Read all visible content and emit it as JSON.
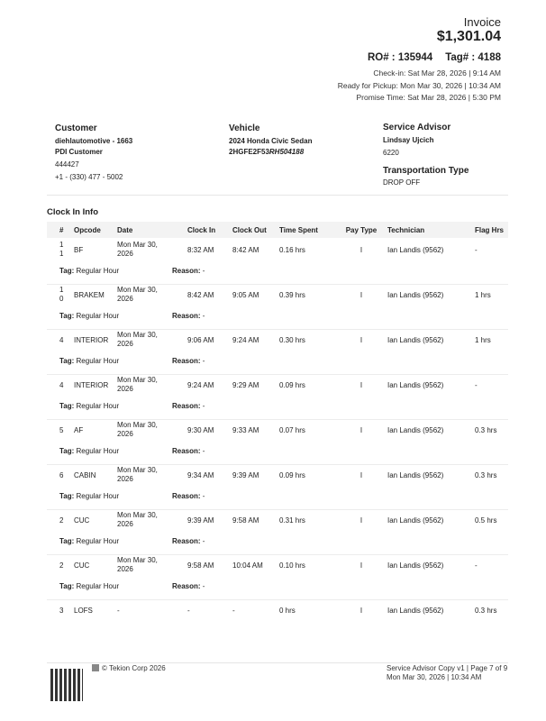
{
  "header": {
    "title": "Invoice",
    "amount": "$1,301.04",
    "ro": "RO# : 135944",
    "tag": "Tag# : 4188",
    "checkin": "Check-in: Sat Mar 28, 2026 | 9:14 AM",
    "ready": "Ready for Pickup: Mon Mar 30, 2026 | 10:34 AM",
    "promise": "Promise Time: Sat Mar 28, 2026 | 5:30 PM"
  },
  "customer": {
    "label": "Customer",
    "name": "diehlautomotive - 1663",
    "type": "PDI Customer",
    "id": "444427",
    "phone": "+1 - (330) 477 - 5002"
  },
  "vehicle": {
    "label": "Vehicle",
    "model": "2024 Honda Civic Sedan",
    "vin_a": "2HGFE2F53",
    "vin_b": "RH504188"
  },
  "advisor": {
    "label": "Service Advisor",
    "name": "Lindsay Ujcich",
    "id": "6220",
    "transport_label": "Transportation Type",
    "transport": "DROP OFF"
  },
  "clock": {
    "title": "Clock In Info",
    "columns": [
      "#",
      "Opcode",
      "Date",
      "Clock In",
      "Clock Out",
      "Time Spent",
      "Pay Type",
      "Technician",
      "Flag Hrs"
    ],
    "tag_label": "Tag:",
    "reason_label": "Reason:",
    "rows": [
      {
        "num": "11",
        "op": "BF",
        "date": "Mon Mar 30, 2026",
        "in": "8:32 AM",
        "out": "8:42 AM",
        "ts": "0.16 hrs",
        "pay": "I",
        "tech": "Ian Landis (9562)",
        "flag": "-",
        "tag": "Regular Hour",
        "reason": "-"
      },
      {
        "num": "10",
        "op": "BRAKEM",
        "date": "Mon Mar 30, 2026",
        "in": "8:42 AM",
        "out": "9:05 AM",
        "ts": "0.39 hrs",
        "pay": "I",
        "tech": "Ian Landis (9562)",
        "flag": "1 hrs",
        "tag": "Regular Hour",
        "reason": "-"
      },
      {
        "num": "4",
        "op": "INTERIOR",
        "date": "Mon Mar 30, 2026",
        "in": "9:06 AM",
        "out": "9:24 AM",
        "ts": "0.30 hrs",
        "pay": "I",
        "tech": "Ian Landis (9562)",
        "flag": "1 hrs",
        "tag": "Regular Hour",
        "reason": "-"
      },
      {
        "num": "4",
        "op": "INTERIOR",
        "date": "Mon Mar 30, 2026",
        "in": "9:24 AM",
        "out": "9:29 AM",
        "ts": "0.09 hrs",
        "pay": "I",
        "tech": "Ian Landis (9562)",
        "flag": "-",
        "tag": "Regular Hour",
        "reason": "-"
      },
      {
        "num": "5",
        "op": "AF",
        "date": "Mon Mar 30, 2026",
        "in": "9:30 AM",
        "out": "9:33 AM",
        "ts": "0.07 hrs",
        "pay": "I",
        "tech": "Ian Landis (9562)",
        "flag": "0.3 hrs",
        "tag": "Regular Hour",
        "reason": "-"
      },
      {
        "num": "6",
        "op": "CABIN",
        "date": "Mon Mar 30, 2026",
        "in": "9:34 AM",
        "out": "9:39 AM",
        "ts": "0.09 hrs",
        "pay": "I",
        "tech": "Ian Landis (9562)",
        "flag": "0.3 hrs",
        "tag": "Regular Hour",
        "reason": "-"
      },
      {
        "num": "2",
        "op": "CUC",
        "date": "Mon Mar 30, 2026",
        "in": "9:39 AM",
        "out": "9:58 AM",
        "ts": "0.31 hrs",
        "pay": "I",
        "tech": "Ian Landis (9562)",
        "flag": "0.5 hrs",
        "tag": "Regular Hour",
        "reason": "-"
      },
      {
        "num": "2",
        "op": "CUC",
        "date": "Mon Mar 30, 2026",
        "in": "9:58 AM",
        "out": "10:04 AM",
        "ts": "0.10 hrs",
        "pay": "I",
        "tech": "Ian Landis (9562)",
        "flag": "-",
        "tag": "Regular Hour",
        "reason": "-"
      },
      {
        "num": "3",
        "op": "LOFS",
        "date": "-",
        "in": "-",
        "out": "-",
        "ts": "0 hrs",
        "pay": "I",
        "tech": "Ian Landis (9562)",
        "flag": "0.3 hrs"
      }
    ]
  },
  "footer": {
    "copyright": "© Tekion Corp 2026",
    "copy": "Service Advisor Copy v1 | Page 7 of 9",
    "printed": "Mon Mar 30, 2026 | 10:34 AM"
  }
}
